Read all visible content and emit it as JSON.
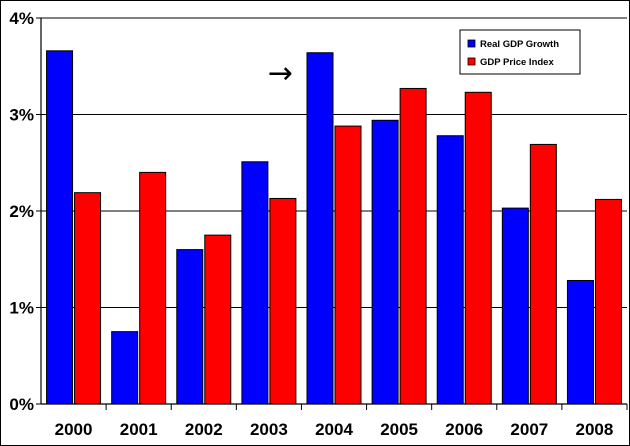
{
  "chart_data": {
    "type": "bar",
    "title": "",
    "xlabel": "",
    "ylabel": "",
    "categories": [
      "2000",
      "2001",
      "2002",
      "2003",
      "2004",
      "2005",
      "2006",
      "2007",
      "2008"
    ],
    "series": [
      {
        "name": "Real GDP Growth",
        "color": "#0000ff",
        "values": [
          3.66,
          0.75,
          1.6,
          2.51,
          3.64,
          2.94,
          2.78,
          2.03,
          1.28
        ]
      },
      {
        "name": "GDP Price Index",
        "color": "#ff0000",
        "values": [
          2.19,
          2.4,
          1.75,
          2.13,
          2.88,
          3.27,
          3.23,
          2.69,
          2.12
        ]
      }
    ],
    "ylim": [
      0,
      4
    ],
    "yticks": [
      "0%",
      "1%",
      "2%",
      "3%",
      "4%"
    ],
    "grid": true,
    "legend_position": "top-right",
    "annotation": {
      "symbol": "→",
      "category": "2004"
    }
  }
}
